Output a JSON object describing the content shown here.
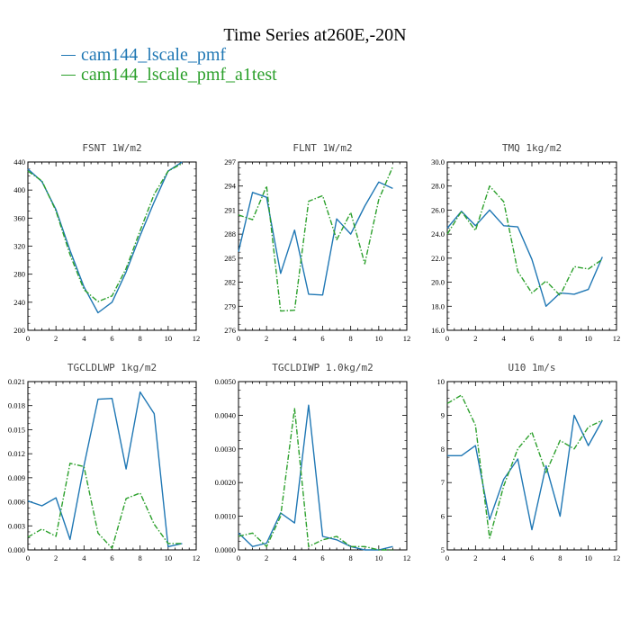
{
  "figure": {
    "title": "Time Series at260E,-20N",
    "legend": [
      {
        "label": "cam144_lscale_pmf",
        "color": "#1f77b4",
        "dash": "solid"
      },
      {
        "label": "cam144_lscale_pmf_a1test",
        "color": "#2ca02c",
        "dash": "dashdot"
      }
    ]
  },
  "chart_data": [
    {
      "type": "line",
      "title": "FSNT   1W/m2",
      "x": [
        0,
        1,
        2,
        3,
        4,
        5,
        6,
        7,
        8,
        9,
        10,
        11
      ],
      "xlim": [
        0,
        12
      ],
      "xticks": [
        0,
        2,
        4,
        6,
        8,
        10,
        12
      ],
      "xticklabels": [
        "0",
        "2",
        "4",
        "6",
        "8",
        "10",
        "12"
      ],
      "ylim": [
        200,
        440
      ],
      "yticks": [
        200,
        240,
        280,
        320,
        360,
        400,
        440
      ],
      "yticklabels": [
        "200",
        "240",
        "280",
        "320",
        "360",
        "400",
        "440"
      ],
      "series": [
        {
          "name": "cam144_lscale_pmf",
          "values": [
            430,
            412,
            372,
            314,
            262,
            225,
            240,
            283,
            335,
            383,
            427,
            440
          ]
        },
        {
          "name": "cam144_lscale_pmf_a1test",
          "values": [
            427,
            413,
            370,
            308,
            258,
            241,
            249,
            288,
            342,
            394,
            427,
            438
          ]
        }
      ]
    },
    {
      "type": "line",
      "title": "FLNT   1W/m2",
      "x": [
        0,
        1,
        2,
        3,
        4,
        5,
        6,
        7,
        8,
        9,
        10,
        11
      ],
      "xlim": [
        0,
        12
      ],
      "xticks": [
        0,
        2,
        4,
        6,
        8,
        10,
        12
      ],
      "xticklabels": [
        "0",
        "2",
        "4",
        "6",
        "8",
        "10",
        "12"
      ],
      "ylim": [
        276,
        297
      ],
      "yticks": [
        276,
        279,
        282,
        285,
        288,
        291,
        294,
        297
      ],
      "yticklabels": [
        "276",
        "279",
        "282",
        "285",
        "288",
        "291",
        "294",
        "297"
      ],
      "series": [
        {
          "name": "cam144_lscale_pmf",
          "values": [
            285.8,
            293.2,
            292.6,
            283.1,
            288.5,
            280.5,
            280.4,
            289.9,
            288.0,
            291.5,
            294.5,
            293.7
          ]
        },
        {
          "name": "cam144_lscale_pmf_a1test",
          "values": [
            290.4,
            289.8,
            294.0,
            278.4,
            278.5,
            292.1,
            292.8,
            287.3,
            290.7,
            284.3,
            292.3,
            296.4
          ]
        }
      ]
    },
    {
      "type": "line",
      "title": "TMQ   1kg/m2",
      "x": [
        0,
        1,
        2,
        3,
        4,
        5,
        6,
        7,
        8,
        9,
        10,
        11
      ],
      "xlim": [
        0,
        12
      ],
      "xticks": [
        0,
        2,
        4,
        6,
        8,
        10,
        12
      ],
      "xticklabels": [
        "0",
        "2",
        "4",
        "6",
        "8",
        "10",
        "12"
      ],
      "ylim": [
        16,
        30
      ],
      "yticks": [
        16,
        18,
        20,
        22,
        24,
        26,
        28,
        30
      ],
      "yticklabels": [
        "16.0",
        "18.0",
        "20.0",
        "22.0",
        "24.0",
        "26.0",
        "28.0",
        "30.0"
      ],
      "series": [
        {
          "name": "cam144_lscale_pmf",
          "values": [
            24.5,
            25.9,
            24.7,
            26.0,
            24.7,
            24.6,
            21.9,
            18.0,
            19.1,
            19.0,
            19.4,
            22.1
          ]
        },
        {
          "name": "cam144_lscale_pmf_a1test",
          "values": [
            24.0,
            25.9,
            24.3,
            28.0,
            26.7,
            20.9,
            19.1,
            20.1,
            18.9,
            21.3,
            21.1,
            21.9
          ]
        }
      ]
    },
    {
      "type": "line",
      "title": "TGCLDLWP   1kg/m2",
      "x": [
        0,
        1,
        2,
        3,
        4,
        5,
        6,
        7,
        8,
        9,
        10,
        11
      ],
      "xlim": [
        0,
        12
      ],
      "xticks": [
        0,
        2,
        4,
        6,
        8,
        10,
        12
      ],
      "xticklabels": [
        "0",
        "2",
        "4",
        "6",
        "8",
        "10",
        "12"
      ],
      "ylim": [
        0,
        0.021
      ],
      "yticks": [
        0,
        0.003,
        0.006,
        0.009,
        0.012,
        0.015,
        0.018,
        0.021
      ],
      "yticklabels": [
        "0.000",
        "0.003",
        "0.006",
        "0.009",
        "0.012",
        "0.015",
        "0.018",
        "0.021"
      ],
      "series": [
        {
          "name": "cam144_lscale_pmf",
          "values": [
            0.0061,
            0.0055,
            0.0065,
            0.0013,
            0.0105,
            0.0188,
            0.0189,
            0.0101,
            0.0197,
            0.017,
            0.0004,
            0.0008
          ]
        },
        {
          "name": "cam144_lscale_pmf_a1test",
          "values": [
            0.0016,
            0.0026,
            0.0017,
            0.0108,
            0.0104,
            0.0021,
            0.0002,
            0.0064,
            0.0071,
            0.0032,
            0.0008,
            0.0008
          ]
        }
      ]
    },
    {
      "type": "line",
      "title": "TGCLDIWP   1.0kg/m2",
      "x": [
        0,
        1,
        2,
        3,
        4,
        5,
        6,
        7,
        8,
        9,
        10,
        11
      ],
      "xlim": [
        0,
        12
      ],
      "xticks": [
        0,
        2,
        4,
        6,
        8,
        10,
        12
      ],
      "xticklabels": [
        "0",
        "2",
        "4",
        "6",
        "8",
        "10",
        "12"
      ],
      "ylim": [
        0,
        0.005
      ],
      "yticks": [
        0,
        0.001,
        0.002,
        0.003,
        0.004,
        0.005
      ],
      "yticklabels": [
        "0.0000",
        "0.0010",
        "0.0020",
        "0.0030",
        "0.0040",
        "0.0050"
      ],
      "series": [
        {
          "name": "cam144_lscale_pmf",
          "values": [
            0.0005,
            0.0001,
            0.0002,
            0.0011,
            0.0008,
            0.0043,
            0.0004,
            0.0003,
            0.0001,
            0.0,
            0.0,
            0.0001
          ]
        },
        {
          "name": "cam144_lscale_pmf_a1test",
          "values": [
            0.0004,
            0.0005,
            0.0001,
            0.001,
            0.0042,
            0.0001,
            0.0003,
            0.0004,
            0.0001,
            0.0001,
            0.0,
            0.0
          ]
        }
      ]
    },
    {
      "type": "line",
      "title": "U10   1m/s",
      "x": [
        0,
        1,
        2,
        3,
        4,
        5,
        6,
        7,
        8,
        9,
        10,
        11
      ],
      "xlim": [
        0,
        12
      ],
      "xticks": [
        0,
        2,
        4,
        6,
        8,
        10,
        12
      ],
      "xticklabels": [
        "0",
        "2",
        "4",
        "6",
        "8",
        "10",
        "12"
      ],
      "ylim": [
        5,
        10
      ],
      "yticks": [
        5,
        6,
        7,
        8,
        9,
        10
      ],
      "yticklabels": [
        "5",
        "6",
        "7",
        "8",
        "9",
        "10"
      ],
      "series": [
        {
          "name": "cam144_lscale_pmf",
          "values": [
            7.8,
            7.8,
            8.1,
            5.9,
            7.1,
            7.7,
            5.6,
            7.5,
            6.0,
            9.0,
            8.1,
            8.85
          ]
        },
        {
          "name": "cam144_lscale_pmf_a1test",
          "values": [
            9.35,
            9.6,
            8.7,
            5.35,
            6.9,
            8.0,
            8.5,
            7.3,
            8.25,
            8.0,
            8.65,
            8.85
          ]
        }
      ]
    }
  ]
}
